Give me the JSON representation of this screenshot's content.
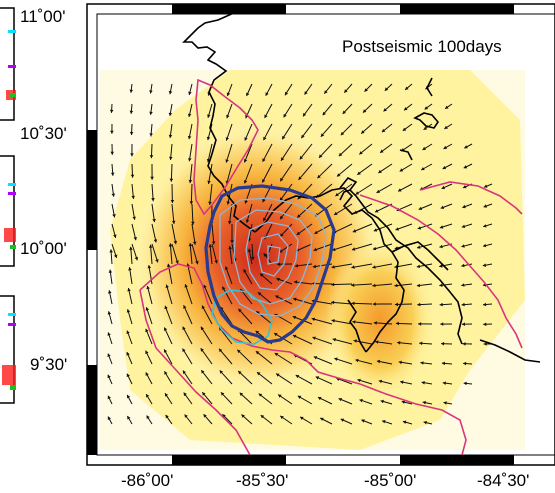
{
  "map": {
    "title": "Postseismic 100days",
    "lat_labels": [
      "11˚00'",
      "10˚30'",
      "10˚00'",
      "9˚30'"
    ],
    "lon_labels": [
      "-86˚00'",
      "-85˚30'",
      "-85˚00'",
      "-84˚30'"
    ],
    "colors": {
      "frame": "#000000",
      "slip_low": "#fff3a0",
      "slip_mid": "#f7b23b",
      "slip_high": "#d63a21",
      "coastline": "#000000",
      "magenta_contour": "#d8367c",
      "aftershock_outline": "#2a3a8c",
      "coseismic_contours": "#8fb6d8",
      "cyan_contour": "#35c3d1",
      "vector": "#111111",
      "left_panel_cyan": "#00e5ff",
      "left_panel_magenta": "#b000ff",
      "left_panel_red": "#ff1a1a",
      "left_panel_green": "#19c219"
    }
  },
  "cropped_left_panel": {
    "description_none": ""
  }
}
